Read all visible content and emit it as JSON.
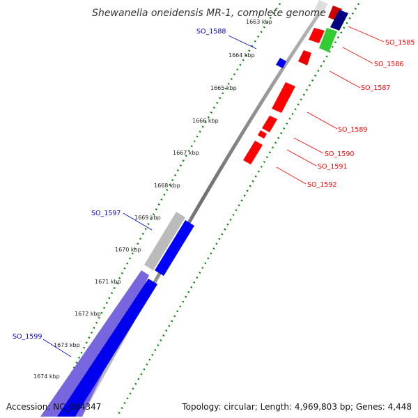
{
  "title": "Shewanella oneidensis MR-1, complete genome",
  "accession": "Accession: NC_004347",
  "summary": "Topology: circular; Length: 4,969,803 bp; Genes: 4,448",
  "colors": {
    "forward_gene": "#ff0000",
    "reverse_gene": "#0000ff",
    "rna_gene": "#33cc33",
    "dark_blue_gene": "#000080",
    "pseudo_gene": "#bbbbbb",
    "long_reverse_gene": "#7766dd",
    "backbone": "#888888",
    "tick": "#007700",
    "label_forward": "#ff0000",
    "label_reverse": "#0000cc"
  },
  "kbp_ticks": [
    "1663 kbp",
    "1664 kbp",
    "1665 kbp",
    "1666 kbp",
    "1667 kbp",
    "1668 kbp",
    "1669 kbp",
    "1670 kbp",
    "1671 kbp",
    "1672 kbp",
    "1673 kbp",
    "1674 kbp"
  ],
  "gene_labels": [
    {
      "text": "SO_1585",
      "strand": "forward"
    },
    {
      "text": "SO_1586",
      "strand": "forward"
    },
    {
      "text": "SO_1587",
      "strand": "forward"
    },
    {
      "text": "SO_1588",
      "strand": "reverse"
    },
    {
      "text": "SO_1589",
      "strand": "forward"
    },
    {
      "text": "SO_1590",
      "strand": "forward"
    },
    {
      "text": "SO_1591",
      "strand": "forward"
    },
    {
      "text": "SO_1592",
      "strand": "forward"
    },
    {
      "text": "SO_1597",
      "strand": "reverse"
    },
    {
      "text": "SO_1599",
      "strand": "reverse"
    }
  ]
}
